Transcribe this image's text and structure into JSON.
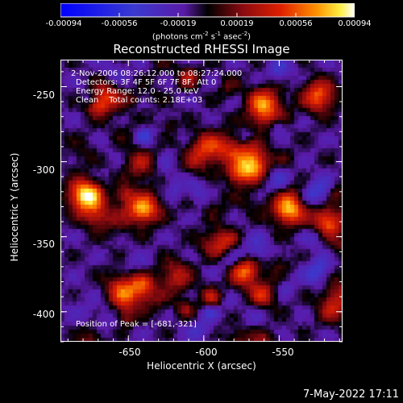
{
  "colorbar": {
    "ticks": [
      "-0.00094",
      "-0.00056",
      "-0.00019",
      "0.00019",
      "0.00056",
      "0.00094"
    ],
    "units_main": "(photons cm",
    "units_sup1": "-2",
    "units_mid1": " s",
    "units_sup2": "-1",
    "units_mid2": " asec",
    "units_sup3": "-2",
    "units_end": ")",
    "range": [
      -0.00094,
      0.00094
    ]
  },
  "chart_data": {
    "type": "heatmap",
    "title": "Reconstructed RHESSI Image",
    "xlabel": "Heliocentric X (arcsec)",
    "ylabel": "Heliocentric Y (arcsec)",
    "xlim": [
      -695,
      -508
    ],
    "ylim": [
      -420,
      -232
    ],
    "xticks": [
      -650,
      -600,
      -550
    ],
    "yticks": [
      -250,
      -300,
      -350,
      -400
    ],
    "peak": [
      -681,
      -321
    ],
    "bright_regions": [
      {
        "x": -681,
        "y": -321,
        "strength": 1.0
      },
      {
        "x": -568,
        "y": -300,
        "strength": 0.8
      },
      {
        "x": -545,
        "y": -330,
        "strength": 0.95
      },
      {
        "x": -520,
        "y": -340,
        "strength": 0.9
      },
      {
        "x": -575,
        "y": -370,
        "strength": 0.9
      },
      {
        "x": -590,
        "y": -355,
        "strength": 0.75
      },
      {
        "x": -560,
        "y": -260,
        "strength": 0.7
      },
      {
        "x": -525,
        "y": -255,
        "strength": 0.75
      },
      {
        "x": -600,
        "y": -290,
        "strength": 0.6
      },
      {
        "x": -640,
        "y": -330,
        "strength": 0.6
      },
      {
        "x": -665,
        "y": -255,
        "strength": 0.55
      },
      {
        "x": -620,
        "y": -375,
        "strength": 0.5
      },
      {
        "x": -655,
        "y": -390,
        "strength": 0.5
      },
      {
        "x": -515,
        "y": -395,
        "strength": 0.5
      }
    ]
  },
  "info": {
    "time_range": "2-Nov-2006 08:26:12.000 to 08:27:24.000",
    "detectors": "Detectors: 3F 4F 5F 6F 7F 8F, Att 0",
    "energy": "Energy Range: 12.0 - 25.0 keV",
    "clean": "Clean    Total counts: 2.18E+03",
    "peak_label": "Position of Peak = [-681,-321]"
  },
  "axes": {
    "ytick_labels": [
      "-250",
      "-300",
      "-350",
      "-400"
    ],
    "xtick_labels": [
      "-650",
      "-600",
      "-550"
    ]
  },
  "footer": {
    "timestamp": "7-May-2022 17:11"
  }
}
